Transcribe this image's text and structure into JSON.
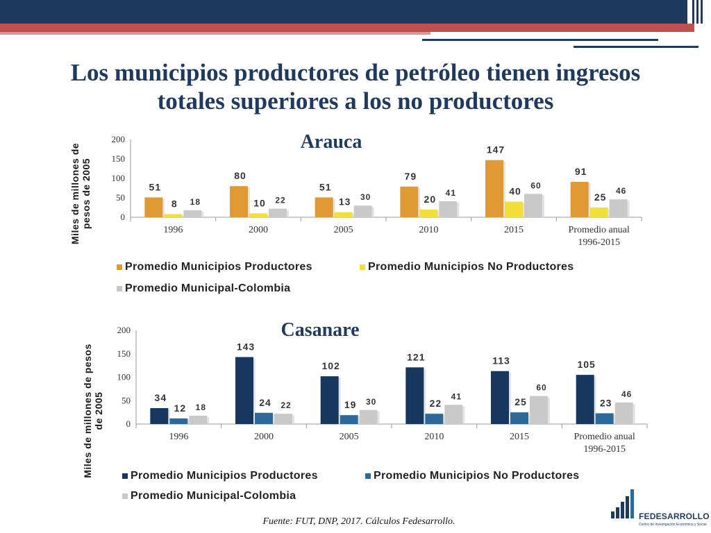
{
  "slide": {
    "title_line1": "Los municipios productores de petróleo tienen ingresos",
    "title_line2": "totales superiores a los no productores",
    "source": "Fuente: FUT, DNP, 2017. Cálculos Fedesarrollo."
  },
  "logo": {
    "name": "FEDESARROLLO",
    "subtitle": "Centro de Investigación Económica y Social",
    "color": "#1f3a5f"
  },
  "chart_data": [
    {
      "type": "bar",
      "title": "Arauca",
      "categories": [
        "1996",
        "2000",
        "2005",
        "2010",
        "2015",
        "Promedio anual 1996-2015"
      ],
      "category_lines": [
        [
          "1996"
        ],
        [
          "2000"
        ],
        [
          "2005"
        ],
        [
          "2010"
        ],
        [
          "2015"
        ],
        [
          "Promedio anual",
          "1996-2015"
        ]
      ],
      "ylabel_lines": [
        "Miles de millones de",
        "pesos de 2005"
      ],
      "ylim": [
        0,
        200
      ],
      "yticks": [
        0,
        50,
        100,
        150,
        200
      ],
      "grid": false,
      "legend_position": "bottom",
      "series": [
        {
          "name": "Promedio Municipios Productores",
          "color": "#e09a33",
          "values": [
            51,
            80,
            51,
            79,
            147,
            91
          ]
        },
        {
          "name": "Promedio Municipios No Productores",
          "color": "#f2df3a",
          "values": [
            8,
            10,
            13,
            20,
            40,
            25
          ]
        },
        {
          "name": "Promedio Municipal-Colombia",
          "color": "#c9c9c9",
          "values": [
            18,
            22,
            30,
            41,
            60,
            46
          ]
        }
      ]
    },
    {
      "type": "bar",
      "title": "Casanare",
      "categories": [
        "1996",
        "2000",
        "2005",
        "2010",
        "2015",
        "Promedio anual 1996-2015"
      ],
      "category_lines": [
        [
          "1996"
        ],
        [
          "2000"
        ],
        [
          "2005"
        ],
        [
          "2010"
        ],
        [
          "2015"
        ],
        [
          "Promedio anual",
          "1996-2015"
        ]
      ],
      "ylabel_lines": [
        "Miles de millones de pesos",
        "de 2005"
      ],
      "ylim": [
        0,
        200
      ],
      "yticks": [
        0,
        50,
        100,
        150,
        200
      ],
      "grid": false,
      "legend_position": "bottom",
      "series": [
        {
          "name": "Promedio Municipios Productores",
          "color": "#17375e",
          "values": [
            34,
            143,
            102,
            121,
            113,
            105
          ]
        },
        {
          "name": "Promedio Municipios No Productores",
          "color": "#2d6a9a",
          "values": [
            12,
            24,
            19,
            22,
            25,
            23
          ]
        },
        {
          "name": "Promedio Municipal-Colombia",
          "color": "#c9c9c9",
          "values": [
            18,
            22,
            30,
            41,
            60,
            46
          ]
        }
      ]
    }
  ]
}
